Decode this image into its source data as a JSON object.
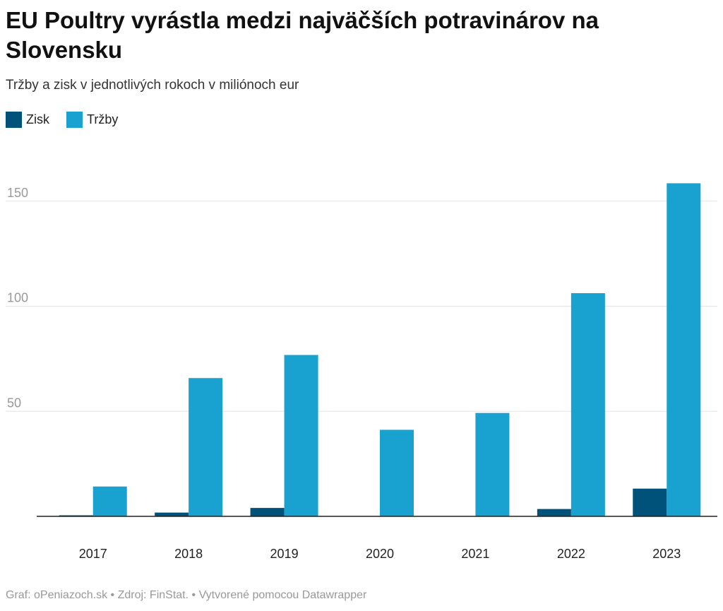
{
  "title": "EU Poultry vyrástla medzi najväčších potravinárov na Slovensku",
  "subtitle": "Tržby a zisk v jednotlivých rokoch v miliónoch eur",
  "footer": {
    "credit": "Graf: oPeniazoch.sk",
    "source": "Zdroj: FinStat.",
    "tool": "Vytvorené pomocou Datawrapper"
  },
  "colors": {
    "zisk": "#00527a",
    "trzby": "#19a1cf",
    "grid": "#e3e3e3",
    "axis": "#222222"
  },
  "chart_data": {
    "type": "bar",
    "title": "EU Poultry vyrástla medzi najväčších potravinárov na Slovensku",
    "subtitle": "Tržby a zisk v jednotlivých rokoch v miliónoch eur",
    "xlabel": "",
    "ylabel": "",
    "categories": [
      "2017",
      "2018",
      "2019",
      "2020",
      "2021",
      "2022",
      "2023"
    ],
    "series": [
      {
        "name": "Zisk",
        "values": [
          0.5,
          1.8,
          4.0,
          0,
          0,
          3.5,
          13.2
        ]
      },
      {
        "name": "Tržby",
        "values": [
          14.2,
          65.8,
          76.8,
          41.2,
          49.2,
          106.2,
          158.5
        ]
      }
    ],
    "ylim": [
      0,
      160
    ],
    "yticks": [
      50,
      100,
      150
    ],
    "grid": true,
    "legend": "top-left"
  }
}
